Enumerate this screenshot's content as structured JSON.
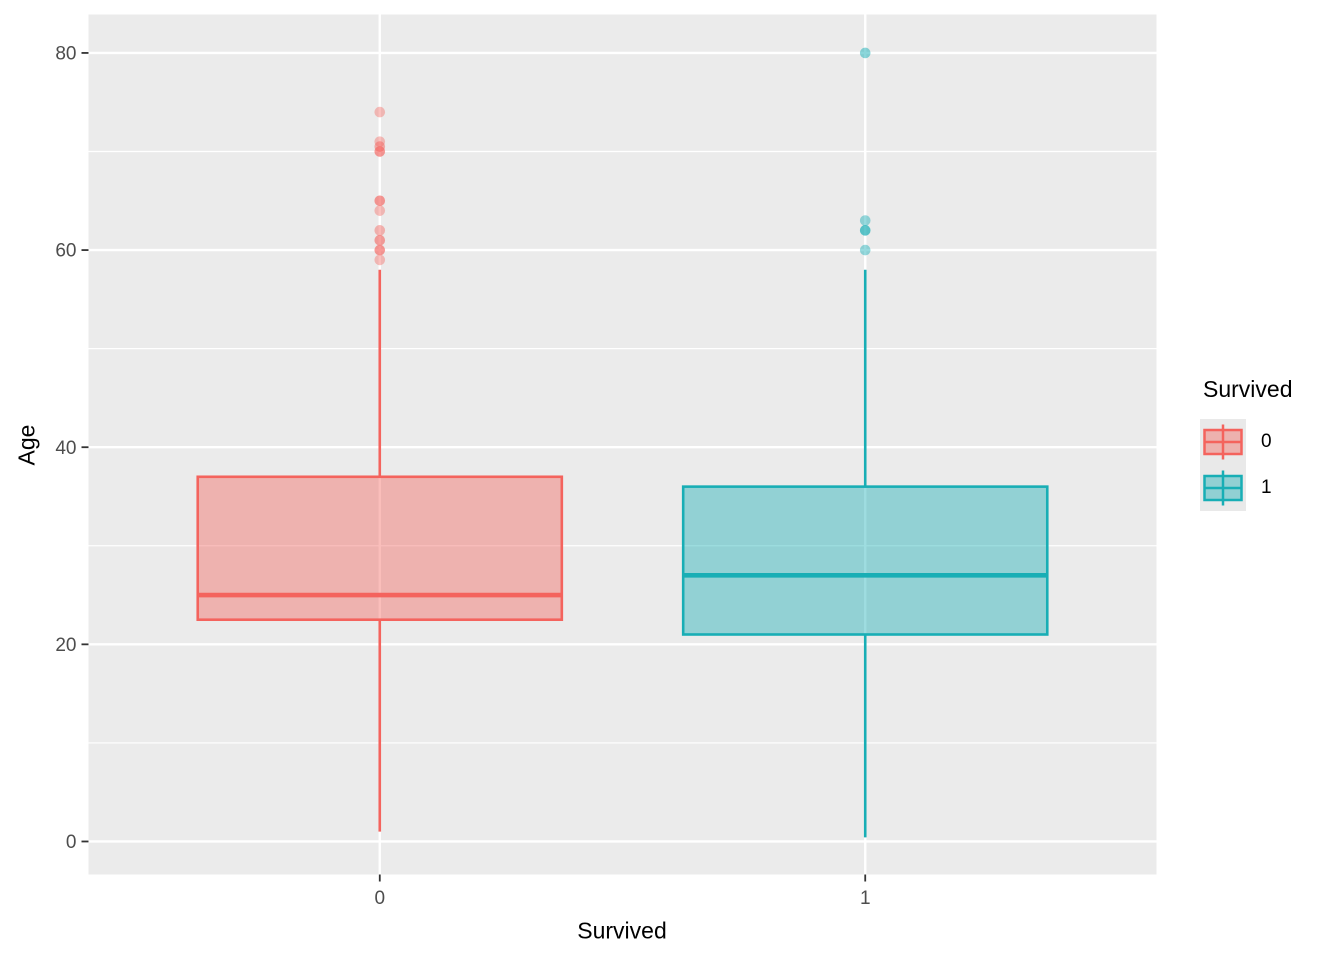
{
  "figure": {
    "background": "#FFFFFF"
  },
  "chart_data": {
    "type": "boxplot",
    "title": "",
    "xlabel": "Survived",
    "ylabel": "Age",
    "categories": [
      "0",
      "1"
    ],
    "y_axis": {
      "ticks": [
        0,
        20,
        40,
        60,
        80
      ],
      "minor_ticks": [
        10,
        30,
        50,
        70
      ],
      "range": [
        -3.35,
        83.9
      ]
    },
    "panel": {
      "background": "#EBEBEB",
      "grid_color": "#FFFFFF",
      "tick_mark_color": "#333333",
      "tick_label_color": "#4D4D4D"
    },
    "legend": {
      "title": "Survived",
      "position": "right",
      "entries": [
        {
          "label": "0",
          "color": "#F4635D"
        },
        {
          "label": "1",
          "color": "#18AEB5"
        }
      ]
    },
    "series": [
      {
        "name": "0",
        "color": "#F4635D",
        "fill_opacity": 0.42,
        "q1": 22.5,
        "median": 25,
        "q3": 37,
        "whisker_low": 1,
        "whisker_high": 58,
        "outliers": [
          {
            "value": 74,
            "opacity": 0.4
          },
          {
            "value": 71,
            "opacity": 0.4
          },
          {
            "value": 70.5,
            "opacity": 0.5
          },
          {
            "value": 70,
            "opacity": 0.65
          },
          {
            "value": 65,
            "opacity": 0.65
          },
          {
            "value": 64,
            "opacity": 0.4
          },
          {
            "value": 62,
            "opacity": 0.45
          },
          {
            "value": 61,
            "opacity": 0.6
          },
          {
            "value": 60,
            "opacity": 0.65
          },
          {
            "value": 59,
            "opacity": 0.4
          }
        ]
      },
      {
        "name": "1",
        "color": "#18AEB5",
        "fill_opacity": 0.42,
        "q1": 21,
        "median": 27,
        "q3": 36,
        "whisker_low": 0.42,
        "whisker_high": 58,
        "outliers": [
          {
            "value": 80,
            "opacity": 0.5
          },
          {
            "value": 63,
            "opacity": 0.45
          },
          {
            "value": 62,
            "opacity": 0.7
          },
          {
            "value": 60,
            "opacity": 0.45
          }
        ]
      }
    ]
  }
}
